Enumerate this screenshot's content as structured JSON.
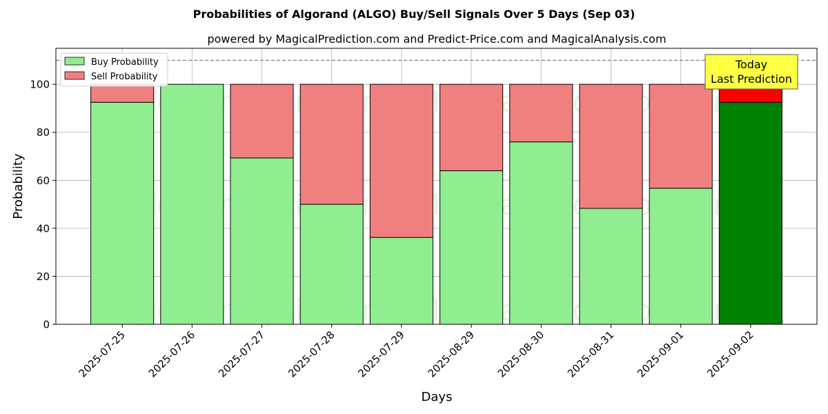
{
  "chart_data": {
    "type": "bar",
    "stacked": true,
    "title": "Probabilities of Algorand (ALGO) Buy/Sell Signals Over 5 Days (Sep 03)",
    "subtitle": "powered by MagicalPrediction.com and Predict-Price.com and MagicalAnalysis.com",
    "xlabel": "Days",
    "ylabel": "Probability",
    "ylim": [
      0,
      115
    ],
    "yticks": [
      0,
      20,
      40,
      60,
      80,
      100
    ],
    "grid": true,
    "legend_position": "upper-left",
    "categories": [
      "2025-07-25",
      "2025-07-26",
      "2025-07-27",
      "2025-07-28",
      "2025-07-29",
      "2025-08-29",
      "2025-08-30",
      "2025-08-31",
      "2025-09-01",
      "2025-09-02"
    ],
    "series": [
      {
        "name": "Buy Probability",
        "color": "#90ee90",
        "highlight_color": "#008000",
        "values": [
          92.5,
          100,
          69.3,
          50.0,
          36.2,
          64.0,
          76.0,
          48.3,
          56.7,
          92.5
        ]
      },
      {
        "name": "Sell Probability",
        "color": "#f08080",
        "highlight_color": "#ff0000",
        "values": [
          7.5,
          0,
          30.7,
          50.0,
          63.8,
          36.0,
          24.0,
          51.7,
          43.3,
          7.5
        ]
      }
    ],
    "highlight_index": 9,
    "reference_line": {
      "y": 110,
      "style": "dashed",
      "color": "#808080"
    },
    "annotation": {
      "line1": "Today",
      "line2": "Last Prediction",
      "color": "#ffff44"
    },
    "watermarks": [
      "MagicalAnalysis.com",
      "MagicalPrediction.com"
    ]
  }
}
